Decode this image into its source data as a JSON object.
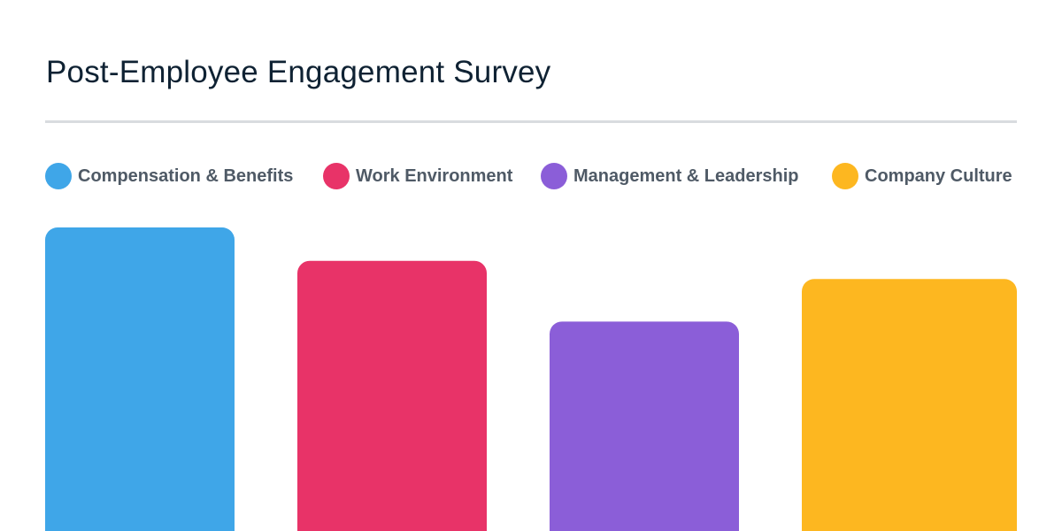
{
  "chart_data": {
    "type": "bar",
    "title": "Post-Employee Engagement Survey",
    "categories": [
      "Compensation & Benefits",
      "Work Environment",
      "Management & Leadership",
      "Company Culture"
    ],
    "values": [
      100,
      89,
      69,
      83
    ],
    "colors": [
      "#3fa6e8",
      "#e83368",
      "#8b5ed8",
      "#fdb720"
    ],
    "legend_position": "top",
    "grid": false,
    "ylim": [
      0,
      100
    ]
  }
}
